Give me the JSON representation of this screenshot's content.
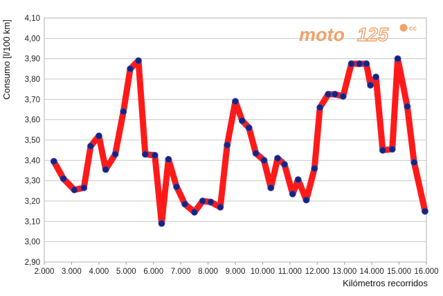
{
  "chart_data": {
    "type": "line",
    "title": "",
    "xlabel": "Kilómetros recorridos",
    "ylabel": "Consumo [l/100 km]",
    "xlim": [
      2000,
      16000
    ],
    "ylim": [
      2.9,
      4.1
    ],
    "grid": true,
    "x_ticks": [
      "2.000",
      "3.000",
      "4.000",
      "5.000",
      "6.000",
      "7.000",
      "8.000",
      "9.000",
      "10.000",
      "11.000",
      "12.000",
      "13.000",
      "14.000",
      "15.000",
      "16.000"
    ],
    "y_ticks": [
      "2,90",
      "3,00",
      "3,10",
      "3,20",
      "3,30",
      "3,40",
      "3,50",
      "3,60",
      "3,70",
      "3,80",
      "3,90",
      "4,00",
      "4,10"
    ],
    "line_color": "#ff1a1a",
    "marker_color": "#1a237e",
    "series": [
      {
        "x": [
          2350,
          2700,
          3100,
          3450,
          3700,
          4000,
          4250,
          4600,
          4900,
          5150,
          5450,
          5700,
          6050,
          6300,
          6550,
          6850,
          7150,
          7500,
          7800,
          8100,
          8450,
          8700,
          9000,
          9250,
          9500,
          9750,
          10050,
          10300,
          10550,
          10800,
          11100,
          11300,
          11600,
          11900,
          12100,
          12400,
          12650,
          12950,
          13250,
          13550,
          13800,
          13950,
          14150,
          14400,
          14750,
          14950,
          15300,
          15550,
          15950
        ],
        "y": [
          3.395,
          3.31,
          3.255,
          3.265,
          3.47,
          3.52,
          3.355,
          3.43,
          3.64,
          3.85,
          3.89,
          3.43,
          3.425,
          3.09,
          3.405,
          3.27,
          3.185,
          3.145,
          3.2,
          3.195,
          3.17,
          3.475,
          3.69,
          3.595,
          3.56,
          3.435,
          3.4,
          3.265,
          3.41,
          3.38,
          3.235,
          3.305,
          3.205,
          3.36,
          3.66,
          3.725,
          3.725,
          3.715,
          3.875,
          3.875,
          3.875,
          3.77,
          3.81,
          3.45,
          3.455,
          3.9,
          3.665,
          3.39,
          3.15
        ]
      }
    ]
  },
  "logo": {
    "text_main": "moto",
    "text_num": "125",
    "text_cc": "cc"
  }
}
